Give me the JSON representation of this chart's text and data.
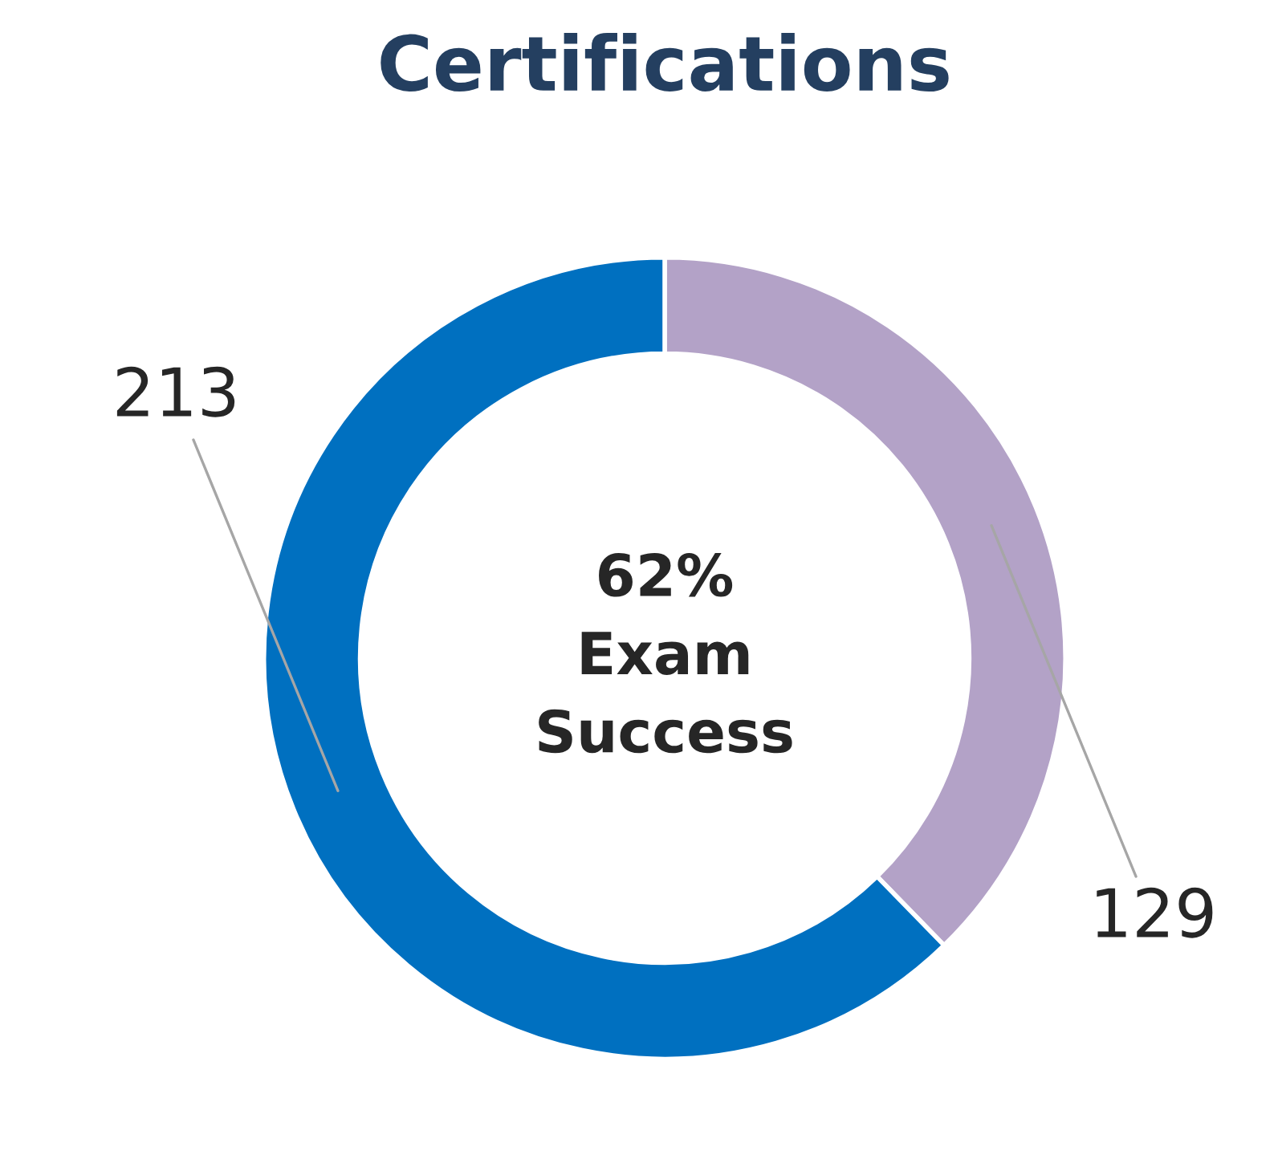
{
  "chart_data": {
    "type": "donut",
    "title": "Certifications",
    "categories": [
      null,
      null
    ],
    "values": [
      129,
      213
    ],
    "colors": [
      "#b3a2c7",
      "#0070c0"
    ],
    "data_labels": true,
    "annotations": [
      "62%\nExam\nSuccess"
    ]
  }
}
